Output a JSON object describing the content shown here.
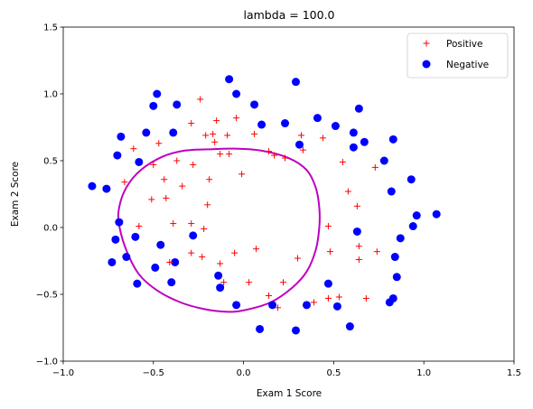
{
  "chart_data": {
    "type": "scatter",
    "title": "lambda = 100.0",
    "xlabel": "Exam 1 Score",
    "ylabel": "Exam 2 Score",
    "xlim": [
      -1.0,
      1.5
    ],
    "ylim": [
      -1.0,
      1.5
    ],
    "xticks": [
      -1.0,
      -0.5,
      0.0,
      0.5,
      1.0,
      1.5
    ],
    "yticks": [
      -1.0,
      -0.5,
      0.0,
      0.5,
      1.0,
      1.5
    ],
    "xtick_labels": [
      "−1.0",
      "−0.5",
      "0.0",
      "0.5",
      "1.0",
      "1.5"
    ],
    "ytick_labels": [
      "−1.0",
      "−0.5",
      "0.0",
      "0.5",
      "1.0",
      "1.5"
    ],
    "grid": false,
    "legend_position": "top-right",
    "colors": {
      "positive": "#ff0000",
      "negative": "#0000ff",
      "boundary": "#bf00bf"
    },
    "series": [
      {
        "name": "Positive",
        "marker": "plus",
        "points": [
          [
            -0.24,
            0.96
          ],
          [
            -0.29,
            0.78
          ],
          [
            -0.15,
            0.8
          ],
          [
            -0.04,
            0.82
          ],
          [
            0.06,
            0.7
          ],
          [
            -0.61,
            0.59
          ],
          [
            -0.47,
            0.63
          ],
          [
            -0.21,
            0.69
          ],
          [
            -0.17,
            0.7
          ],
          [
            -0.09,
            0.69
          ],
          [
            -0.16,
            0.64
          ],
          [
            0.14,
            0.57
          ],
          [
            0.17,
            0.54
          ],
          [
            0.23,
            0.52
          ],
          [
            0.32,
            0.69
          ],
          [
            0.44,
            0.67
          ],
          [
            0.33,
            0.58
          ],
          [
            -0.5,
            0.47
          ],
          [
            -0.37,
            0.5
          ],
          [
            -0.28,
            0.47
          ],
          [
            -0.13,
            0.55
          ],
          [
            -0.08,
            0.55
          ],
          [
            -0.66,
            0.34
          ],
          [
            -0.44,
            0.36
          ],
          [
            -0.34,
            0.31
          ],
          [
            -0.19,
            0.36
          ],
          [
            -0.01,
            0.4
          ],
          [
            0.55,
            0.49
          ],
          [
            0.58,
            0.27
          ],
          [
            0.63,
            0.16
          ],
          [
            0.73,
            0.45
          ],
          [
            -0.51,
            0.21
          ],
          [
            -0.43,
            0.22
          ],
          [
            -0.2,
            0.17
          ],
          [
            -0.58,
            0.01
          ],
          [
            -0.39,
            0.03
          ],
          [
            -0.29,
            0.03
          ],
          [
            -0.22,
            -0.01
          ],
          [
            0.47,
            0.01
          ],
          [
            0.48,
            -0.18
          ],
          [
            0.64,
            -0.14
          ],
          [
            0.64,
            -0.24
          ],
          [
            0.74,
            -0.18
          ],
          [
            -0.29,
            -0.19
          ],
          [
            -0.23,
            -0.22
          ],
          [
            -0.05,
            -0.19
          ],
          [
            0.07,
            -0.16
          ],
          [
            -0.13,
            -0.27
          ],
          [
            -0.41,
            -0.26
          ],
          [
            -0.11,
            -0.41
          ],
          [
            0.03,
            -0.41
          ],
          [
            0.22,
            -0.41
          ],
          [
            0.3,
            -0.23
          ],
          [
            0.14,
            -0.51
          ],
          [
            0.19,
            -0.6
          ],
          [
            0.39,
            -0.56
          ],
          [
            0.47,
            -0.53
          ],
          [
            0.53,
            -0.52
          ],
          [
            0.68,
            -0.53
          ]
        ]
      },
      {
        "name": "Negative",
        "marker": "circle",
        "points": [
          [
            -0.08,
            1.11
          ],
          [
            -0.48,
            1.0
          ],
          [
            -0.5,
            0.91
          ],
          [
            -0.37,
            0.92
          ],
          [
            -0.04,
            1.0
          ],
          [
            0.06,
            0.92
          ],
          [
            0.29,
            1.09
          ],
          [
            0.64,
            0.89
          ],
          [
            -0.68,
            0.68
          ],
          [
            -0.54,
            0.71
          ],
          [
            -0.39,
            0.71
          ],
          [
            0.1,
            0.77
          ],
          [
            0.23,
            0.78
          ],
          [
            0.41,
            0.82
          ],
          [
            0.51,
            0.76
          ],
          [
            0.61,
            0.71
          ],
          [
            0.61,
            0.6
          ],
          [
            0.67,
            0.64
          ],
          [
            0.83,
            0.66
          ],
          [
            0.31,
            0.62
          ],
          [
            -0.7,
            0.54
          ],
          [
            -0.58,
            0.49
          ],
          [
            0.78,
            0.5
          ],
          [
            -0.84,
            0.31
          ],
          [
            -0.76,
            0.29
          ],
          [
            0.82,
            0.27
          ],
          [
            0.93,
            0.36
          ],
          [
            -0.69,
            0.04
          ],
          [
            0.96,
            0.09
          ],
          [
            0.94,
            0.01
          ],
          [
            1.07,
            0.1
          ],
          [
            -0.71,
            -0.09
          ],
          [
            -0.6,
            -0.07
          ],
          [
            -0.46,
            -0.13
          ],
          [
            -0.28,
            -0.06
          ],
          [
            0.63,
            -0.03
          ],
          [
            0.87,
            -0.08
          ],
          [
            -0.73,
            -0.26
          ],
          [
            -0.65,
            -0.22
          ],
          [
            -0.49,
            -0.3
          ],
          [
            -0.38,
            -0.26
          ],
          [
            0.84,
            -0.22
          ],
          [
            -0.59,
            -0.42
          ],
          [
            -0.4,
            -0.41
          ],
          [
            -0.14,
            -0.36
          ],
          [
            -0.13,
            -0.45
          ],
          [
            0.47,
            -0.42
          ],
          [
            0.85,
            -0.37
          ],
          [
            0.83,
            -0.53
          ],
          [
            0.81,
            -0.56
          ],
          [
            0.16,
            -0.58
          ],
          [
            0.35,
            -0.58
          ],
          [
            0.52,
            -0.59
          ],
          [
            -0.04,
            -0.58
          ],
          [
            0.59,
            -0.74
          ],
          [
            0.09,
            -0.76
          ],
          [
            0.29,
            -0.77
          ]
        ]
      }
    ],
    "decision_boundary": [
      [
        -0.2,
        0.585
      ],
      [
        -0.05,
        0.59
      ],
      [
        0.1,
        0.575
      ],
      [
        0.25,
        0.52
      ],
      [
        0.35,
        0.43
      ],
      [
        0.4,
        0.3
      ],
      [
        0.42,
        0.15
      ],
      [
        0.42,
        0.0
      ],
      [
        0.4,
        -0.17
      ],
      [
        0.35,
        -0.33
      ],
      [
        0.27,
        -0.45
      ],
      [
        0.15,
        -0.56
      ],
      [
        0.0,
        -0.62
      ],
      [
        -0.1,
        -0.63
      ],
      [
        -0.22,
        -0.61
      ],
      [
        -0.35,
        -0.56
      ],
      [
        -0.48,
        -0.47
      ],
      [
        -0.58,
        -0.35
      ],
      [
        -0.65,
        -0.17
      ],
      [
        -0.69,
        0.02
      ],
      [
        -0.69,
        0.15
      ],
      [
        -0.65,
        0.3
      ],
      [
        -0.57,
        0.43
      ],
      [
        -0.45,
        0.53
      ],
      [
        -0.33,
        0.575
      ]
    ]
  }
}
